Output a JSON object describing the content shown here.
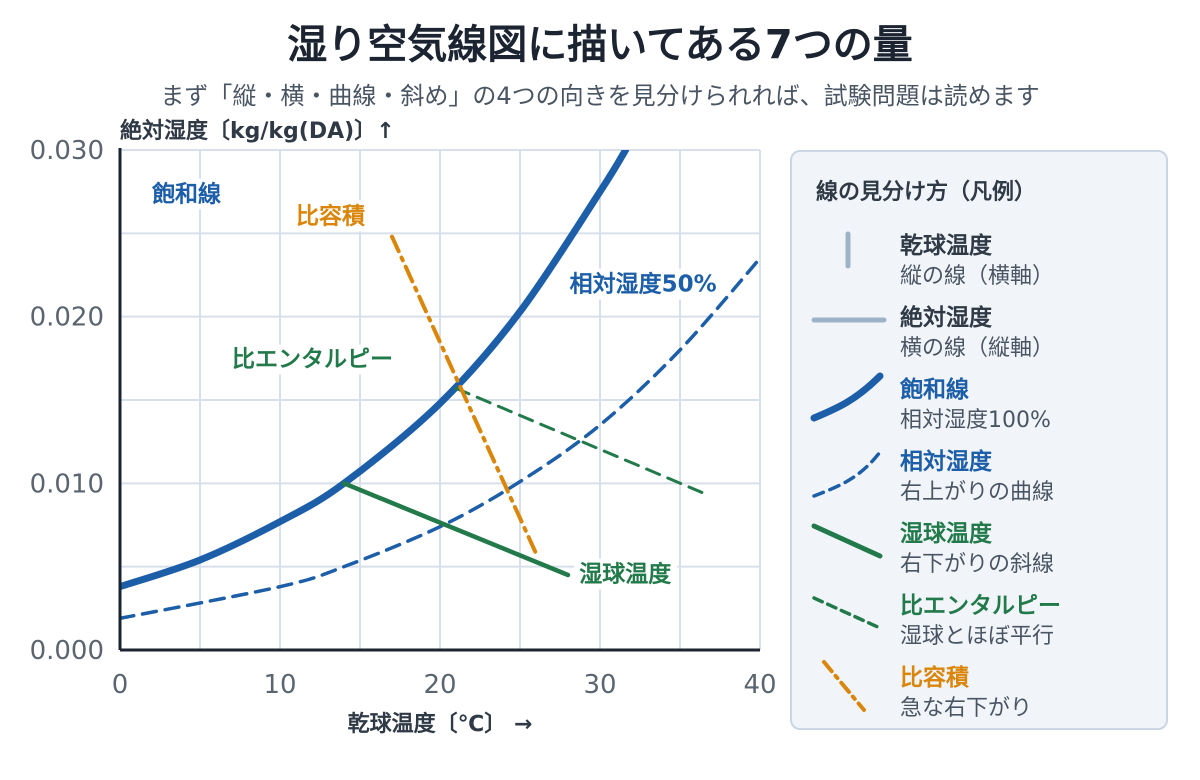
{
  "title": "湿り空気線図に描いてある7つの量",
  "subtitle": "まず「縦・横・曲線・斜め」の4つの向きを見分けられれば、試験問題は読めます",
  "colors": {
    "saturation": "#1c5ea8",
    "axis_gray": "#9fb3c8",
    "wetbulb": "#227a4a",
    "enthalpy": "#227a4a",
    "volume": "#d9860b",
    "grid": "#d7e0ea",
    "axis": "#1b2430"
  },
  "chart_data": {
    "type": "line",
    "xlabel": "乾球温度〔℃〕 →",
    "ylabel": "絶対湿度〔kg/kg(DA)〕↑",
    "xlim": [
      0,
      40
    ],
    "ylim": [
      0,
      0.03
    ],
    "x_ticks": [
      "0",
      "10",
      "20",
      "30",
      "40"
    ],
    "y_ticks": [
      "0.000",
      "0.010",
      "0.020",
      "0.030"
    ],
    "grid": true,
    "series": [
      {
        "name": "飽和線",
        "style": "solid-thick",
        "color": "#1c5ea8",
        "x": [
          0,
          5,
          10,
          14,
          20,
          25,
          30,
          31.6
        ],
        "y": [
          0.0038,
          0.0054,
          0.0077,
          0.01,
          0.0148,
          0.0203,
          0.0275,
          0.03
        ]
      },
      {
        "name": "相対湿度50%",
        "style": "dashed",
        "color": "#1c5ea8",
        "x": [
          0,
          10,
          14,
          20,
          25,
          30,
          35,
          40
        ],
        "y": [
          0.0019,
          0.0038,
          0.005,
          0.0074,
          0.0101,
          0.0135,
          0.018,
          0.0235
        ]
      },
      {
        "name": "湿球温度",
        "style": "solid",
        "color": "#227a4a",
        "x": [
          14,
          28
        ],
        "y": [
          0.01,
          0.0045
        ]
      },
      {
        "name": "比エンタルピー",
        "style": "dashed",
        "color": "#227a4a",
        "x": [
          21,
          36.5
        ],
        "y": [
          0.0157,
          0.0094
        ]
      },
      {
        "name": "比容積",
        "style": "dashdot",
        "color": "#d9860b",
        "x": [
          17,
          26
        ],
        "y": [
          0.0248,
          0.0058
        ]
      }
    ],
    "annotations": [
      {
        "text": "飽和線",
        "x": 2.0,
        "y": 0.0269,
        "color": "#1c5ea8"
      },
      {
        "text": "比容積",
        "x": 11.0,
        "y": 0.0256,
        "color": "#d9860b"
      },
      {
        "text": "相対湿度50%",
        "x": 28.1,
        "y": 0.0215,
        "color": "#1c5ea8"
      },
      {
        "text": "比エンタルピー",
        "x": 7.0,
        "y": 0.017,
        "color": "#227a4a"
      },
      {
        "text": "湿球温度",
        "x": 28.7,
        "y": 0.0041,
        "color": "#227a4a"
      }
    ]
  },
  "legend": {
    "title": "線の見分け方（凡例）",
    "items": [
      {
        "name": "乾球温度",
        "desc": "縦の線（横軸）",
        "color": "#2f3a46",
        "symbol": "vertical"
      },
      {
        "name": "絶対湿度",
        "desc": "横の線（縦軸）",
        "color": "#2f3a46",
        "symbol": "horizontal"
      },
      {
        "name": "飽和線",
        "desc": "相対湿度100%",
        "color": "#1c5ea8",
        "symbol": "curve-thick"
      },
      {
        "name": "相対湿度",
        "desc": "右上がりの曲線",
        "color": "#1c5ea8",
        "symbol": "curve-dashed"
      },
      {
        "name": "湿球温度",
        "desc": "右下がりの斜線",
        "color": "#227a4a",
        "symbol": "diag-solid"
      },
      {
        "name": "比エンタルピー",
        "desc": "湿球とほぼ平行",
        "color": "#227a4a",
        "symbol": "diag-dashed"
      },
      {
        "name": "比容積",
        "desc": "急な右下がり",
        "color": "#d9860b",
        "symbol": "steep-dashdot"
      }
    ]
  }
}
